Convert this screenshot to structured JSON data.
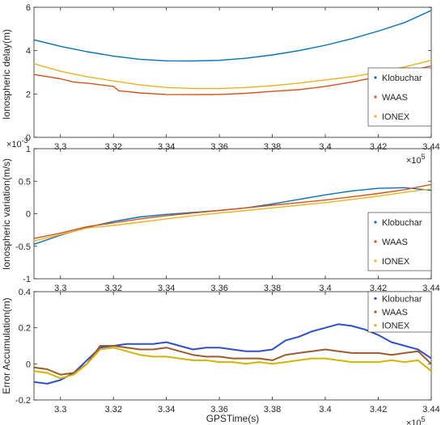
{
  "chart_data": [
    {
      "type": "line",
      "title": "",
      "xlabel": "",
      "ylabel": "Ionospheric delay(m)",
      "xlim": [
        3.29,
        3.44
      ],
      "ylim": [
        0,
        6
      ],
      "xticks": [
        3.3,
        3.32,
        3.34,
        3.36,
        3.38,
        3.4,
        3.42,
        3.44
      ],
      "xtick_labels": [
        "3.3",
        "3.32",
        "3.34",
        "3.36",
        "3.38",
        "3.4",
        "3.42",
        "3.44"
      ],
      "yticks": [
        0,
        2,
        4,
        6
      ],
      "ytick_labels": [
        "0",
        "2",
        "4",
        "6"
      ],
      "x_exponent": {
        "base": "×10",
        "power": "5"
      },
      "y_exponent": null,
      "grid": false,
      "legend_position": "bottom-right",
      "series": [
        {
          "name": "Klobuchar",
          "color": "#0072BD",
          "x": [
            3.29,
            3.3,
            3.31,
            3.32,
            3.33,
            3.34,
            3.35,
            3.36,
            3.37,
            3.38,
            3.39,
            3.4,
            3.41,
            3.42,
            3.43,
            3.44
          ],
          "y": [
            4.5,
            4.2,
            3.95,
            3.75,
            3.6,
            3.53,
            3.52,
            3.55,
            3.65,
            3.8,
            4.0,
            4.25,
            4.55,
            4.9,
            5.3,
            5.85
          ]
        },
        {
          "name": "WAAS",
          "color": "#D95319",
          "x": [
            3.29,
            3.3,
            3.305,
            3.31,
            3.32,
            3.322,
            3.33,
            3.34,
            3.35,
            3.36,
            3.37,
            3.38,
            3.39,
            3.4,
            3.41,
            3.42,
            3.43,
            3.44
          ],
          "y": [
            2.9,
            2.7,
            2.55,
            2.5,
            2.35,
            2.15,
            2.05,
            1.98,
            1.97,
            1.98,
            2.03,
            2.12,
            2.2,
            2.35,
            2.55,
            2.8,
            3.0,
            3.3
          ]
        },
        {
          "name": "IONEX",
          "color": "#EDB120",
          "x": [
            3.29,
            3.3,
            3.31,
            3.32,
            3.33,
            3.34,
            3.35,
            3.36,
            3.37,
            3.38,
            3.39,
            3.4,
            3.41,
            3.42,
            3.43,
            3.44
          ],
          "y": [
            3.4,
            3.05,
            2.8,
            2.6,
            2.42,
            2.3,
            2.25,
            2.25,
            2.3,
            2.38,
            2.5,
            2.65,
            2.8,
            3.0,
            3.25,
            3.55
          ]
        }
      ]
    },
    {
      "type": "line",
      "title": "",
      "xlabel": "",
      "ylabel": "Ionospheric variation(m/s)",
      "xlim": [
        3.29,
        3.44
      ],
      "ylim": [
        -1,
        1
      ],
      "xticks": [
        3.3,
        3.32,
        3.34,
        3.36,
        3.38,
        3.4,
        3.42,
        3.44
      ],
      "xtick_labels": [
        "3.3",
        "3.32",
        "3.34",
        "3.36",
        "3.38",
        "3.4",
        "3.42",
        "3.44"
      ],
      "yticks": [
        -1,
        -0.5,
        0,
        0.5,
        1
      ],
      "ytick_labels": [
        "-1",
        "-0.5",
        "0",
        "0.5",
        "1"
      ],
      "x_exponent": {
        "base": "×10",
        "power": "5"
      },
      "y_exponent": {
        "base": "×10",
        "power": "-3"
      },
      "grid": false,
      "legend_position": "bottom-right",
      "series": [
        {
          "name": "Klobuchar",
          "color": "#0072BD",
          "x": [
            3.29,
            3.3,
            3.31,
            3.32,
            3.33,
            3.34,
            3.35,
            3.36,
            3.37,
            3.38,
            3.39,
            3.4,
            3.41,
            3.42,
            3.43,
            3.44
          ],
          "y": [
            -0.47,
            -0.33,
            -0.21,
            -0.12,
            -0.05,
            -0.01,
            0.02,
            0.05,
            0.09,
            0.15,
            0.22,
            0.29,
            0.35,
            0.39,
            0.4,
            0.36
          ]
        },
        {
          "name": "WAAS",
          "color": "#D95319",
          "x": [
            3.29,
            3.3,
            3.31,
            3.32,
            3.33,
            3.34,
            3.35,
            3.36,
            3.37,
            3.38,
            3.39,
            3.4,
            3.41,
            3.42,
            3.43,
            3.44
          ],
          "y": [
            -0.38,
            -0.3,
            -0.2,
            -0.14,
            -0.08,
            -0.03,
            0.01,
            0.05,
            0.09,
            0.13,
            0.17,
            0.21,
            0.26,
            0.31,
            0.37,
            0.45
          ]
        },
        {
          "name": "IONEX",
          "color": "#EDB120",
          "x": [
            3.29,
            3.3,
            3.31,
            3.32,
            3.33,
            3.34,
            3.35,
            3.36,
            3.37,
            3.38,
            3.39,
            3.4,
            3.41,
            3.42,
            3.43,
            3.44
          ],
          "y": [
            -0.42,
            -0.32,
            -0.22,
            -0.18,
            -0.13,
            -0.08,
            -0.03,
            0.01,
            0.05,
            0.09,
            0.13,
            0.17,
            0.22,
            0.27,
            0.33,
            0.38
          ]
        }
      ]
    },
    {
      "type": "line",
      "title": "",
      "xlabel": "GPSTime(s)",
      "ylabel": "Error Accumulation(m)",
      "xlim": [
        3.29,
        3.44
      ],
      "ylim": [
        -0.2,
        0.4
      ],
      "xticks": [
        3.3,
        3.32,
        3.34,
        3.36,
        3.38,
        3.4,
        3.42,
        3.44
      ],
      "xtick_labels": [
        "3.3",
        "3.32",
        "3.34",
        "3.36",
        "3.38",
        "3.4",
        "3.42",
        "3.44"
      ],
      "yticks": [
        -0.2,
        0,
        0.2,
        0.4
      ],
      "ytick_labels": [
        "-0.2",
        "0",
        "0.2",
        "0.4"
      ],
      "x_exponent": {
        "base": "×10",
        "power": "5"
      },
      "y_exponent": null,
      "grid": false,
      "legend_position": "top-right",
      "series": [
        {
          "name": "Klobuchar",
          "color": "#2F4FCB",
          "x": [
            3.29,
            3.295,
            3.3,
            3.305,
            3.31,
            3.315,
            3.32,
            3.325,
            3.33,
            3.335,
            3.34,
            3.345,
            3.35,
            3.355,
            3.36,
            3.365,
            3.37,
            3.375,
            3.38,
            3.385,
            3.39,
            3.395,
            3.4,
            3.405,
            3.41,
            3.415,
            3.42,
            3.425,
            3.43,
            3.435,
            3.44
          ],
          "y": [
            -0.1,
            -0.11,
            -0.09,
            -0.05,
            0.02,
            0.09,
            0.1,
            0.11,
            0.11,
            0.11,
            0.12,
            0.1,
            0.08,
            0.09,
            0.09,
            0.08,
            0.07,
            0.07,
            0.08,
            0.13,
            0.15,
            0.18,
            0.2,
            0.22,
            0.21,
            0.19,
            0.16,
            0.12,
            0.1,
            0.08,
            0.03
          ]
        },
        {
          "name": "WAAS",
          "color": "#9C5A2E",
          "x": [
            3.29,
            3.295,
            3.3,
            3.305,
            3.31,
            3.315,
            3.32,
            3.325,
            3.33,
            3.335,
            3.34,
            3.345,
            3.35,
            3.355,
            3.36,
            3.365,
            3.37,
            3.375,
            3.38,
            3.385,
            3.39,
            3.395,
            3.4,
            3.405,
            3.41,
            3.415,
            3.42,
            3.425,
            3.43,
            3.435,
            3.44
          ],
          "y": [
            -0.02,
            -0.03,
            -0.06,
            -0.05,
            0.0,
            0.1,
            0.1,
            0.09,
            0.08,
            0.08,
            0.09,
            0.07,
            0.05,
            0.04,
            0.04,
            0.03,
            0.03,
            0.03,
            0.02,
            0.05,
            0.06,
            0.07,
            0.08,
            0.07,
            0.06,
            0.06,
            0.06,
            0.05,
            0.06,
            0.07,
            0.0
          ]
        },
        {
          "name": "IONEX",
          "color": "#D4B400",
          "x": [
            3.29,
            3.295,
            3.3,
            3.305,
            3.31,
            3.315,
            3.32,
            3.325,
            3.33,
            3.335,
            3.34,
            3.345,
            3.35,
            3.355,
            3.36,
            3.365,
            3.37,
            3.375,
            3.38,
            3.385,
            3.39,
            3.395,
            3.4,
            3.405,
            3.41,
            3.415,
            3.42,
            3.425,
            3.43,
            3.435,
            3.44
          ],
          "y": [
            -0.04,
            -0.05,
            -0.08,
            -0.06,
            0.0,
            0.08,
            0.09,
            0.07,
            0.05,
            0.04,
            0.04,
            0.03,
            0.02,
            0.02,
            0.01,
            0.01,
            0.0,
            0.01,
            0.0,
            0.01,
            0.02,
            0.03,
            0.03,
            0.02,
            0.01,
            0.01,
            0.01,
            0.02,
            0.01,
            0.02,
            -0.04
          ]
        }
      ]
    }
  ]
}
